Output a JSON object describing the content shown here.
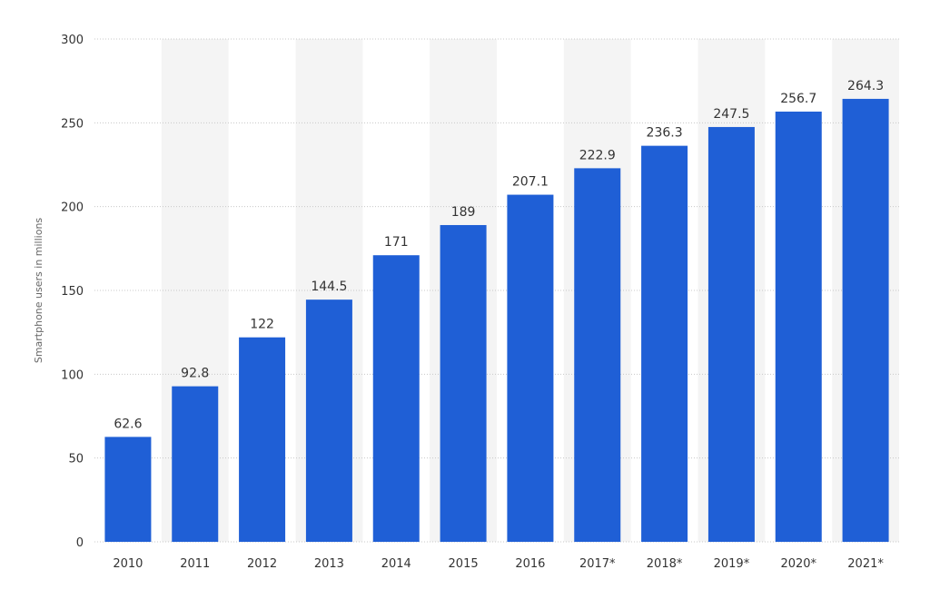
{
  "chart_data": {
    "type": "bar",
    "title": "",
    "xlabel": "",
    "ylabel": "Smartphone users in millions",
    "categories": [
      "2010",
      "2011",
      "2012",
      "2013",
      "2014",
      "2015",
      "2016",
      "2017*",
      "2018*",
      "2019*",
      "2020*",
      "2021*"
    ],
    "values": [
      62.6,
      92.8,
      122,
      144.5,
      171,
      189,
      207.1,
      222.9,
      236.3,
      247.5,
      256.7,
      264.3
    ],
    "value_labels": [
      "62.6",
      "92.8",
      "122",
      "144.5",
      "171",
      "189",
      "207.1",
      "222.9",
      "236.3",
      "247.5",
      "256.7",
      "264.3"
    ],
    "yticks": [
      "0",
      "50",
      "100",
      "150",
      "200",
      "250",
      "300"
    ],
    "ylim": [
      0,
      300
    ],
    "grid": "horizontal-dotted",
    "legend": "none",
    "colors": {
      "bar": "#1f5fd6",
      "band": "#f4f4f4",
      "grid": "#c8c8c8"
    }
  }
}
